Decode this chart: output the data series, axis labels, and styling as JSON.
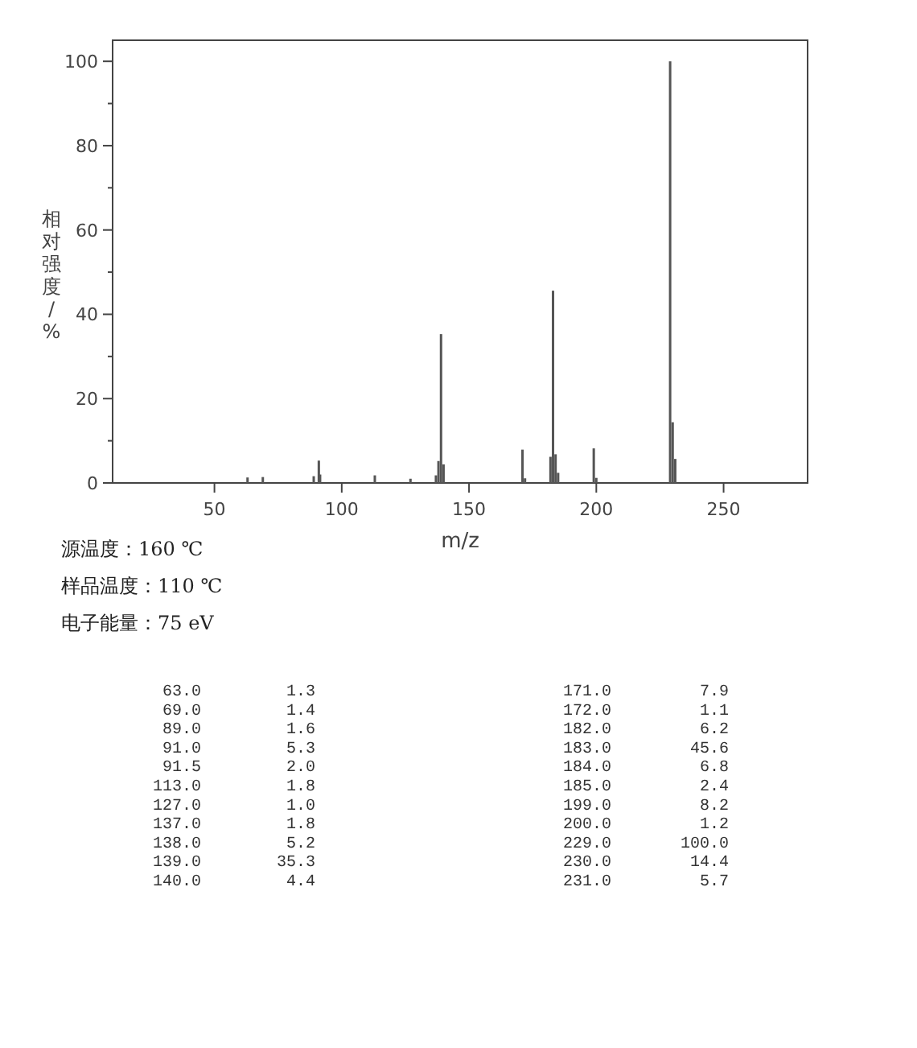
{
  "chart_data": [
    {
      "type": "bar",
      "xlabel": "m/z",
      "ylabel": "相对强度/%",
      "color": "#555555",
      "x": [
        63,
        69,
        89,
        91,
        91.5,
        113,
        127,
        137,
        138,
        139,
        140,
        171,
        172,
        182,
        183,
        184,
        185,
        199,
        200,
        229,
        230,
        231
      ],
      "values": [
        1.3,
        1.4,
        1.6,
        5.3,
        2.0,
        1.8,
        1.0,
        1.8,
        5.2,
        35.3,
        4.4,
        7.9,
        1.1,
        6.2,
        45.6,
        6.8,
        2.4,
        8.2,
        1.2,
        100.0,
        14.4,
        5.7
      ],
      "xlim": [
        10,
        283
      ],
      "ylim": [
        0,
        105
      ],
      "xticks": [
        50,
        100,
        150,
        200,
        250
      ],
      "yticks": [
        0,
        {
          "value": 10,
          "label": null
        },
        20,
        {
          "value": 30,
          "label": null
        },
        40,
        {
          "value": 50,
          "label": null
        },
        60,
        {
          "value": 70,
          "label": null
        },
        80,
        {
          "value": 90,
          "label": null
        },
        100
      ],
      "grid": false,
      "annotations": [
        "源温度：160 ℃",
        "样品温度：110 ℃",
        "电子能量：75 eV"
      ]
    },
    {
      "type": "other",
      "annotations": [
        "63.0",
        "1.3",
        "69.0",
        "1.4",
        "89.0",
        "1.6",
        "91.0",
        "5.3",
        "91.5",
        "2.0",
        "113.0",
        "1.8",
        "127.0",
        "1.0",
        "137.0",
        "1.8",
        "138.0",
        "5.2",
        "139.0",
        "35.3",
        "140.0",
        "4.4",
        "171.0",
        "7.9",
        "172.0",
        "1.1",
        "182.0",
        "6.2",
        "183.0",
        "45.6",
        "184.0",
        "6.8",
        "185.0",
        "2.4",
        "199.0",
        "8.2",
        "200.0",
        "1.2",
        "229.0",
        "100.0",
        "230.0",
        "14.4",
        "231.0",
        "5.7"
      ]
    }
  ]
}
